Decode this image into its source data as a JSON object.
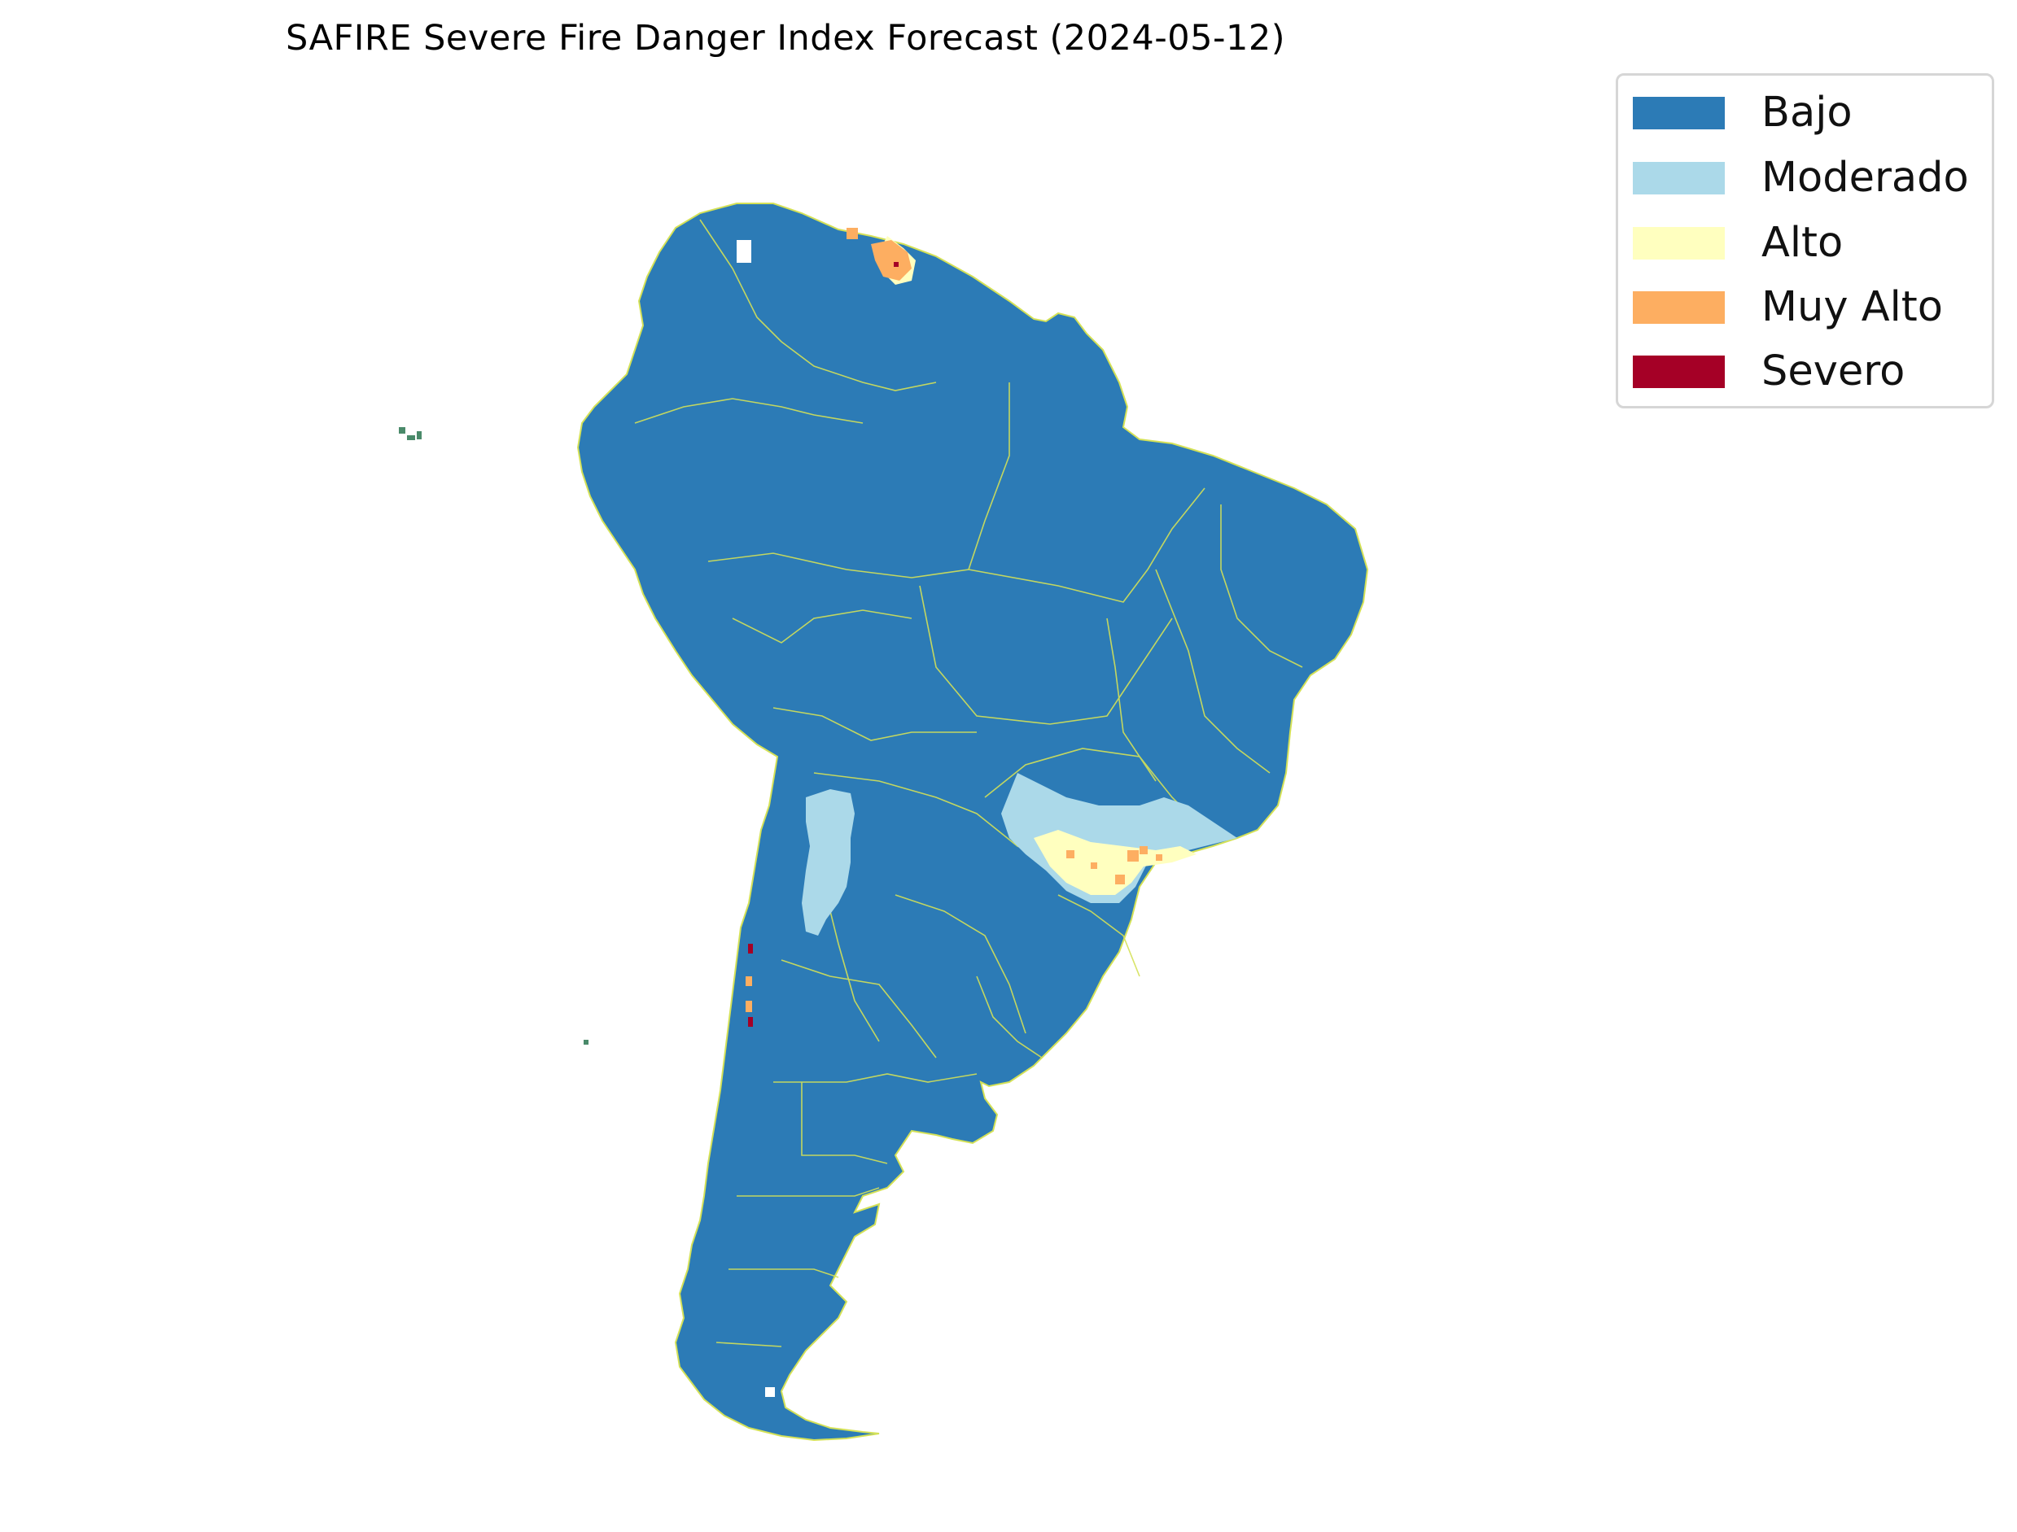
{
  "title": "SAFIRE Severe Fire Danger Index Forecast (2024-05-12)",
  "legend": {
    "items": [
      {
        "label": "Bajo",
        "color": "#2c7bb6"
      },
      {
        "label": "Moderado",
        "color": "#abd9e9"
      },
      {
        "label": "Alto",
        "color": "#ffffbf"
      },
      {
        "label": "Muy Alto",
        "color": "#fdae61"
      },
      {
        "label": "Severo",
        "color": "#a50026"
      }
    ]
  },
  "colors": {
    "land_default": "#2c7bb6",
    "boundaries": "#d4e157"
  }
}
